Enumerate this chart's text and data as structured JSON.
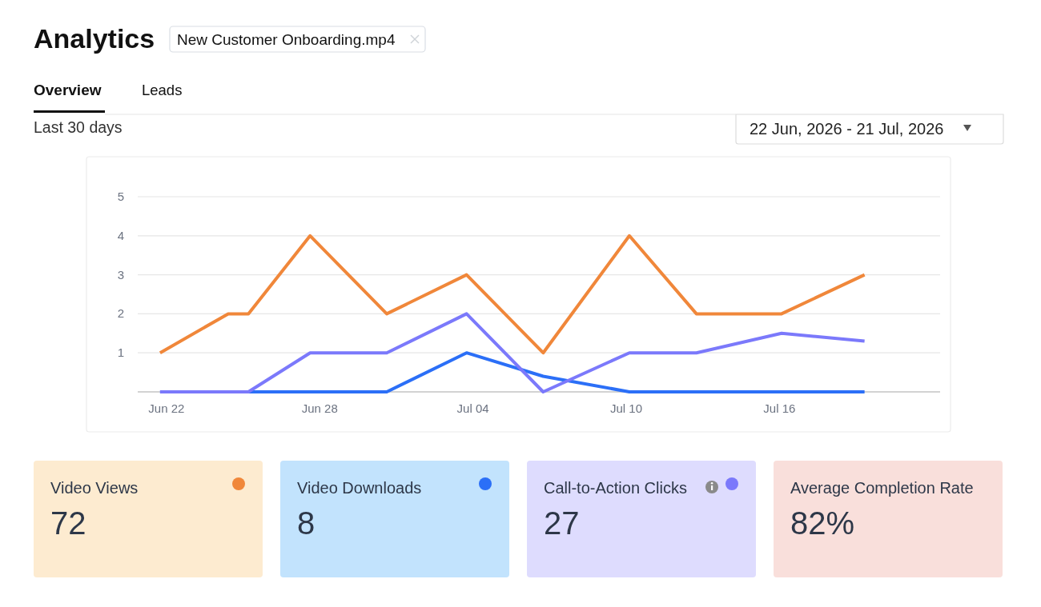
{
  "chart_data": [
    {
      "type": "line",
      "title": "Analytics",
      "subtitle": "Last 30 days",
      "annotations": [
        "New Customer Onboarding.mp4",
        "Overview",
        "Leads",
        "22 Jun, 2026 - 21 Jul, 2026"
      ],
      "x": [
        "2026-06-21T18:00",
        "2026-06-24T10:00",
        "2026-06-25T05:00",
        "2026-06-27T15:00",
        "2026-06-30T15:00",
        "2026-07-03T18:00",
        "2026-07-06T18:00",
        "2026-07-10T03:00",
        "2026-07-12T18:00",
        "2026-07-16T02:00",
        "2026-07-19T08:00"
      ],
      "series": [
        {
          "color": "#f0873a",
          "values": [
            1,
            2,
            2,
            4,
            2,
            3,
            1,
            4,
            2,
            2,
            3
          ]
        },
        {
          "color": "#2b6ff7",
          "values": [
            0,
            0,
            0,
            0,
            0,
            1,
            0.4,
            0,
            0,
            0,
            0
          ]
        },
        {
          "color": "#7b79fb",
          "values": [
            0,
            0,
            0,
            1,
            1,
            2,
            0,
            1,
            1,
            1.5,
            1.3
          ]
        }
      ],
      "xlim": [
        "2026-06-20T21:00",
        "2026-07-22T07:00"
      ],
      "xticks": [
        {
          "value": "2026-06-22",
          "label": "Jun 22"
        },
        {
          "value": "2026-06-28",
          "label": "Jun 28"
        },
        {
          "value": "2026-07-04",
          "label": "Jul 04"
        },
        {
          "value": "2026-07-10",
          "label": "Jul 10"
        },
        {
          "value": "2026-07-16",
          "label": "Jul 16"
        }
      ],
      "ylim": [
        0,
        5
      ],
      "yticks": [
        1,
        2,
        3,
        4,
        5
      ],
      "grid": "y"
    },
    {
      "type": "other",
      "categories": [
        "Video Views",
        "Video Downloads",
        "Call-to-Action Clicks",
        "Average Completion Rate"
      ],
      "value_labels": [
        "72",
        "8",
        "27",
        "82%"
      ]
    }
  ]
}
